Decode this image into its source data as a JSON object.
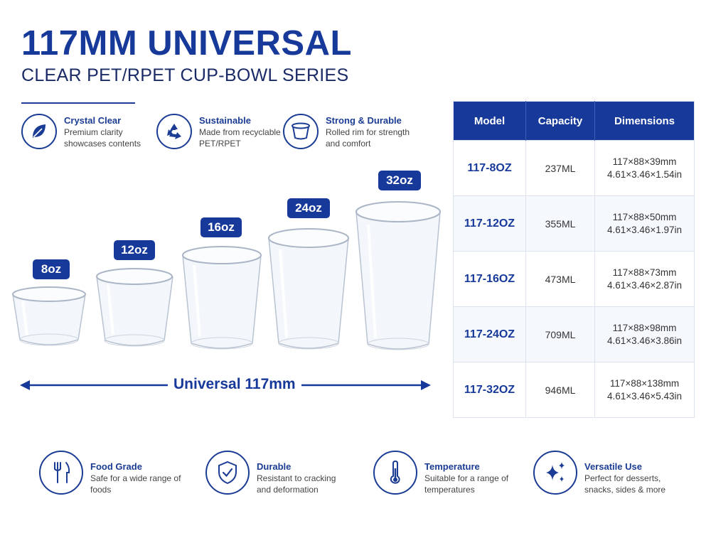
{
  "header": {
    "title": "117MM UNIVERSAL",
    "subtitle": "CLEAR PET/RPET CUP-BOWL SERIES"
  },
  "features": [
    {
      "icon": "leaf-icon",
      "title": "Crystal Clear",
      "desc": "Premium clarity showcases contents"
    },
    {
      "icon": "recycle-icon",
      "title": "Sustainable",
      "desc": "Made from recyclable PET/RPET"
    },
    {
      "icon": "cup-rim-icon",
      "title": "Strong & Durable",
      "desc": "Rolled rim for strength and comfort"
    }
  ],
  "cups": [
    "8oz",
    "12oz",
    "16oz",
    "24oz",
    "32oz"
  ],
  "universal_label": "Universal 117mm",
  "table": {
    "headers": [
      "Model",
      "Capacity",
      "Dimensions"
    ],
    "rows": [
      {
        "model": "117-8OZ",
        "capacity": "237ML",
        "dim_mm": "117×88×39mm",
        "dim_in": "4.61×3.46×1.54in"
      },
      {
        "model": "117-12OZ",
        "capacity": "355ML",
        "dim_mm": "117×88×50mm",
        "dim_in": "4.61×3.46×1.97in"
      },
      {
        "model": "117-16OZ",
        "capacity": "473ML",
        "dim_mm": "117×88×73mm",
        "dim_in": "4.61×3.46×2.87in"
      },
      {
        "model": "117-24OZ",
        "capacity": "709ML",
        "dim_mm": "117×88×98mm",
        "dim_in": "4.61×3.46×3.86in"
      },
      {
        "model": "117-32OZ",
        "capacity": "946ML",
        "dim_mm": "117×88×138mm",
        "dim_in": "4.61×3.46×5.43in"
      }
    ]
  },
  "bottom_features": [
    {
      "icon": "fork-knife-icon",
      "title": "Food Grade",
      "desc": "Safe for a wide range of foods"
    },
    {
      "icon": "shield-check-icon",
      "title": "Durable",
      "desc": "Resistant to cracking and deformation"
    },
    {
      "icon": "thermometer-icon",
      "title": "Temperature",
      "desc": "Suitable for a range of temperatures"
    },
    {
      "icon": "sparkle-icon",
      "title": "Versatile Use",
      "desc": "Perfect for desserts, snacks, sides & more"
    }
  ],
  "colors": {
    "brand": "#17399a",
    "text": "#333333"
  }
}
